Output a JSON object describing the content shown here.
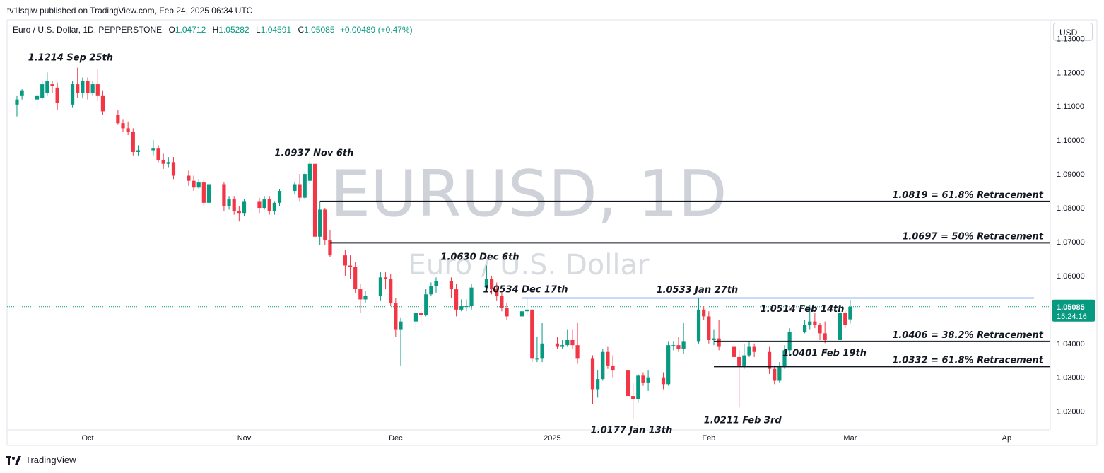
{
  "header": {
    "published": "tv1lsqiw published on TradingView.com, Feb 24, 2025 06:34 UTC"
  },
  "symbol": {
    "name": "Euro / U.S. Dollar, 1D, PEPPERSTONE",
    "o_label": "O",
    "o": "1.04712",
    "h_label": "H",
    "h": "1.05282",
    "l_label": "L",
    "l": "1.04591",
    "c_label": "C",
    "c": "1.05085",
    "change": "+0.00489 (+0.47%)"
  },
  "currency": "USD",
  "footer": {
    "brand": "TradingView",
    "logo": "tradingview-logo-icon"
  },
  "watermark": {
    "title": "EURUSD, 1D",
    "subtitle": "Euro / U.S. Dollar"
  },
  "colors": {
    "up": "#089981",
    "down": "#f23645",
    "level": "#131722",
    "resistance": "#2962ff",
    "price_tag": "#089981"
  },
  "chart_data": {
    "type": "candlestick",
    "ylim": [
      1.0145,
      1.1355
    ],
    "y_ticks": [
      "1.13000",
      "1.12000",
      "1.11000",
      "1.10000",
      "1.09000",
      "1.08000",
      "1.07000",
      "1.06000",
      "1.05000",
      "1.04000",
      "1.03000",
      "1.02000"
    ],
    "x_ticks": [
      {
        "label": "Oct",
        "day": 0
      },
      {
        "label": "Nov",
        "day": 31
      },
      {
        "label": "Dec",
        "day": 61
      },
      {
        "label": "2025",
        "day": 92
      },
      {
        "label": "Feb",
        "day": 123
      },
      {
        "label": "Mar",
        "day": 151
      },
      {
        "label": "Ap",
        "day": 182
      }
    ],
    "last_price": {
      "value": "1.05085",
      "countdown": "15:24:16"
    },
    "candles": [
      [
        -14,
        1.1105,
        1.112,
        1.107,
        1.113
      ],
      [
        -13,
        1.113,
        1.1145,
        1.112,
        1.115
      ],
      [
        -10,
        1.112,
        1.113,
        1.1095,
        1.115
      ],
      [
        -9,
        1.1125,
        1.1165,
        1.112,
        1.1175
      ],
      [
        -8,
        1.114,
        1.1175,
        1.113,
        1.12
      ],
      [
        -7,
        1.1165,
        1.116,
        1.114,
        1.1175
      ],
      [
        -6,
        1.1155,
        1.111,
        1.109,
        1.117
      ],
      [
        -3,
        1.1105,
        1.1165,
        1.1095,
        1.1175
      ],
      [
        -2,
        1.1165,
        1.114,
        1.1125,
        1.1214
      ],
      [
        -1,
        1.114,
        1.1175,
        1.1125,
        1.1185
      ],
      [
        0,
        1.1175,
        1.114,
        1.112,
        1.1185
      ],
      [
        1,
        1.114,
        1.1165,
        1.113,
        1.1175
      ],
      [
        2,
        1.1165,
        1.113,
        1.1115,
        1.121
      ],
      [
        3,
        1.113,
        1.1085,
        1.1075,
        1.1145
      ],
      [
        6,
        1.1075,
        1.105,
        1.1045,
        1.109
      ],
      [
        7,
        1.105,
        1.1035,
        1.1025,
        1.106
      ],
      [
        8,
        1.1035,
        1.1025,
        1.1015,
        1.1055
      ],
      [
        9,
        1.1025,
        1.0965,
        1.0955,
        1.1035
      ],
      [
        10,
        1.0965,
        1.097,
        1.0955,
        1.0985
      ],
      [
        13,
        1.097,
        1.0975,
        1.0955,
        1.1
      ],
      [
        14,
        1.0975,
        1.094,
        1.0935,
        1.0985
      ],
      [
        15,
        1.094,
        1.093,
        1.0915,
        1.096
      ],
      [
        16,
        1.093,
        1.0935,
        1.092,
        1.095
      ],
      [
        17,
        1.0935,
        1.0895,
        1.0885,
        1.095
      ],
      [
        20,
        1.0895,
        1.088,
        1.0865,
        1.091
      ],
      [
        21,
        1.088,
        1.086,
        1.085,
        1.0895
      ],
      [
        22,
        1.086,
        1.0875,
        1.0855,
        1.0885
      ],
      [
        23,
        1.0875,
        1.0815,
        1.0805,
        1.0885
      ],
      [
        24,
        1.0815,
        1.087,
        1.081,
        1.0875
      ],
      [
        27,
        1.087,
        1.0805,
        1.079,
        1.0875
      ],
      [
        28,
        1.0805,
        1.0825,
        1.0795,
        1.0835
      ],
      [
        29,
        1.0825,
        1.079,
        1.078,
        1.0835
      ],
      [
        30,
        1.079,
        1.0785,
        1.076,
        1.0805
      ],
      [
        31,
        1.0785,
        1.082,
        1.0775,
        1.0825
      ],
      [
        34,
        1.082,
        1.08,
        1.0785,
        1.083
      ],
      [
        35,
        1.08,
        1.0825,
        1.0795,
        1.0835
      ],
      [
        36,
        1.0825,
        1.079,
        1.078,
        1.0835
      ],
      [
        37,
        1.079,
        1.0815,
        1.078,
        1.082
      ],
      [
        38,
        1.0815,
        1.085,
        1.0805,
        1.0855
      ],
      [
        41,
        1.085,
        1.087,
        1.084,
        1.0875
      ],
      [
        42,
        1.087,
        1.083,
        1.082,
        1.09
      ],
      [
        43,
        1.083,
        1.09,
        1.0825,
        1.0905
      ],
      [
        44,
        1.088,
        1.093,
        1.087,
        1.0937
      ],
      [
        45,
        1.093,
        1.0715,
        1.07,
        1.0937
      ],
      [
        46,
        1.0715,
        1.0795,
        1.069,
        1.082
      ],
      [
        47,
        1.0795,
        1.0705,
        1.069,
        1.08
      ],
      [
        48,
        1.0705,
        1.066,
        1.0655,
        1.0735
      ],
      [
        51,
        1.066,
        1.063,
        1.06,
        1.0675
      ],
      [
        52,
        1.063,
        1.0625,
        1.059,
        1.066
      ],
      [
        53,
        1.0625,
        1.056,
        1.055,
        1.064
      ],
      [
        54,
        1.056,
        1.053,
        1.049,
        1.0575
      ],
      [
        55,
        1.053,
        1.054,
        1.052,
        1.0555
      ],
      [
        58,
        1.054,
        1.0595,
        1.0525,
        1.061
      ],
      [
        59,
        1.0595,
        1.059,
        1.056,
        1.061
      ],
      [
        60,
        1.059,
        1.052,
        1.051,
        1.0605
      ],
      [
        61,
        1.052,
        1.044,
        1.042,
        1.0535
      ],
      [
        62,
        1.044,
        1.0465,
        1.0335,
        1.0475
      ],
      [
        65,
        1.0465,
        1.049,
        1.044,
        1.05
      ],
      [
        66,
        1.049,
        1.0485,
        1.0455,
        1.0525
      ],
      [
        67,
        1.0485,
        1.0545,
        1.048,
        1.056
      ],
      [
        68,
        1.0545,
        1.057,
        1.054,
        1.058
      ],
      [
        69,
        1.057,
        1.0585,
        1.055,
        1.0595
      ],
      [
        72,
        1.0585,
        1.056,
        1.0535,
        1.0595
      ],
      [
        73,
        1.056,
        1.05,
        1.048,
        1.0575
      ],
      [
        74,
        1.05,
        1.051,
        1.0495,
        1.053
      ],
      [
        75,
        1.051,
        1.051,
        1.0495,
        1.053
      ],
      [
        76,
        1.051,
        1.0565,
        1.05,
        1.0575
      ],
      [
        79,
        1.0565,
        1.059,
        1.056,
        1.063
      ],
      [
        80,
        1.059,
        1.056,
        1.0545,
        1.06
      ],
      [
        81,
        1.056,
        1.054,
        1.0525,
        1.058
      ],
      [
        82,
        1.054,
        1.0505,
        1.0495,
        1.055
      ],
      [
        83,
        1.0505,
        1.048,
        1.047,
        1.052
      ],
      [
        86,
        1.048,
        1.0495,
        1.047,
        1.0534
      ],
      [
        87,
        1.0495,
        1.05,
        1.0485,
        1.0534
      ],
      [
        88,
        1.05,
        1.0355,
        1.0345,
        1.05
      ],
      [
        89,
        1.0355,
        1.0355,
        1.0345,
        1.042
      ],
      [
        90,
        1.0355,
        1.04,
        1.0345,
        1.046
      ],
      [
        93,
        1.04,
        1.039,
        1.0385,
        1.042
      ],
      [
        94,
        1.039,
        1.0395,
        1.0385,
        1.041
      ],
      [
        95,
        1.0395,
        1.041,
        1.039,
        1.044
      ],
      [
        96,
        1.041,
        1.0395,
        1.0385,
        1.044
      ],
      [
        97,
        1.0395,
        1.0355,
        1.034,
        1.046
      ],
      [
        100,
        1.0355,
        1.0265,
        1.022,
        1.0365
      ],
      [
        101,
        1.0265,
        1.0295,
        1.024,
        1.032
      ],
      [
        102,
        1.0295,
        1.0375,
        1.029,
        1.0385
      ],
      [
        103,
        1.0375,
        1.0335,
        1.0325,
        1.039
      ],
      [
        104,
        1.0335,
        1.032,
        1.03,
        1.0365
      ],
      [
        107,
        1.032,
        1.0245,
        1.024,
        1.0325
      ],
      [
        108,
        1.0245,
        1.0235,
        1.0177,
        1.0285
      ],
      [
        109,
        1.0235,
        1.0305,
        1.0225,
        1.031
      ],
      [
        110,
        1.0305,
        1.0285,
        1.0275,
        1.0315
      ],
      [
        111,
        1.0285,
        1.03,
        1.026,
        1.032
      ],
      [
        114,
        1.03,
        1.028,
        1.0265,
        1.0315
      ],
      [
        115,
        1.028,
        1.0395,
        1.0275,
        1.0405
      ],
      [
        116,
        1.0395,
        1.0395,
        1.038,
        1.0405
      ],
      [
        117,
        1.0395,
        1.0385,
        1.0375,
        1.042
      ],
      [
        118,
        1.0385,
        1.0405,
        1.037,
        1.046
      ],
      [
        121,
        1.0405,
        1.05,
        1.04,
        1.0533
      ],
      [
        122,
        1.05,
        1.048,
        1.047,
        1.051
      ],
      [
        123,
        1.048,
        1.041,
        1.04,
        1.0495
      ],
      [
        124,
        1.041,
        1.0415,
        1.0395,
        1.044
      ],
      [
        125,
        1.0415,
        1.039,
        1.038,
        1.047
      ],
      [
        128,
        1.039,
        1.036,
        1.035,
        1.04
      ],
      [
        129,
        1.036,
        1.0335,
        1.0211,
        1.038
      ],
      [
        130,
        1.0335,
        1.0365,
        1.0325,
        1.04
      ],
      [
        131,
        1.0365,
        1.039,
        1.036,
        1.0405
      ],
      [
        132,
        1.039,
        1.0375,
        1.036,
        1.04
      ],
      [
        135,
        1.0375,
        1.0325,
        1.031,
        1.039
      ],
      [
        136,
        1.0325,
        1.029,
        1.028,
        1.0335
      ],
      [
        137,
        1.029,
        1.033,
        1.0285,
        1.0345
      ],
      [
        138,
        1.033,
        1.038,
        1.0325,
        1.0395
      ],
      [
        139,
        1.038,
        1.0435,
        1.037,
        1.0445
      ],
      [
        142,
        1.0435,
        1.0455,
        1.043,
        1.047
      ],
      [
        143,
        1.0455,
        1.0465,
        1.044,
        1.0514
      ],
      [
        144,
        1.0465,
        1.0455,
        1.0445,
        1.049
      ],
      [
        145,
        1.0455,
        1.043,
        1.041,
        1.046
      ],
      [
        146,
        1.043,
        1.041,
        1.0401,
        1.0465
      ],
      [
        149,
        1.041,
        1.049,
        1.0405,
        1.0495
      ],
      [
        150,
        1.049,
        1.0455,
        1.0445,
        1.0495
      ],
      [
        151,
        1.04712,
        1.05085,
        1.04591,
        1.05282
      ]
    ],
    "levels": [
      {
        "label": "1.0819 = 61.8% Retracement",
        "value": 1.0819,
        "x_from": 46,
        "color": "level"
      },
      {
        "label": "1.0697 = 50% Retracement",
        "value": 1.0697,
        "x_from": 48,
        "color": "level"
      },
      {
        "label": "1.0406 = 38.2% Retracement",
        "value": 1.0406,
        "x_from": 124,
        "color": "level"
      },
      {
        "label": "1.0332 = 61.8% Retracement",
        "value": 1.0332,
        "x_from": 124,
        "color": "level"
      },
      {
        "label": "",
        "value": 1.0534,
        "x_from": 86,
        "color": "resistance"
      }
    ],
    "annotations": [
      {
        "text": "1.1214 Sep 25th",
        "day": -2,
        "value": 1.1214
      },
      {
        "text": "1.0937 Nov 6th",
        "day": 44,
        "value": 1.0937
      },
      {
        "text": "1.0630 Dec 6th",
        "day": 79,
        "value": 1.063
      },
      {
        "text": "1.0534 Dec 17th",
        "day": 86,
        "value": 1.0534
      },
      {
        "text": "1.0533 Jan 27th",
        "day": 121,
        "value": 1.0533
      },
      {
        "text": "1.0514 Feb 14th",
        "day": 143,
        "value": 1.0514
      },
      {
        "text": "1.0401 Feb 19th",
        "day": 146,
        "value": 1.0401
      },
      {
        "text": "1.0211 Feb 3rd",
        "day": 129,
        "value": 1.0211
      },
      {
        "text": "1.0177 Jan 13th",
        "day": 108,
        "value": 1.0177
      }
    ]
  }
}
